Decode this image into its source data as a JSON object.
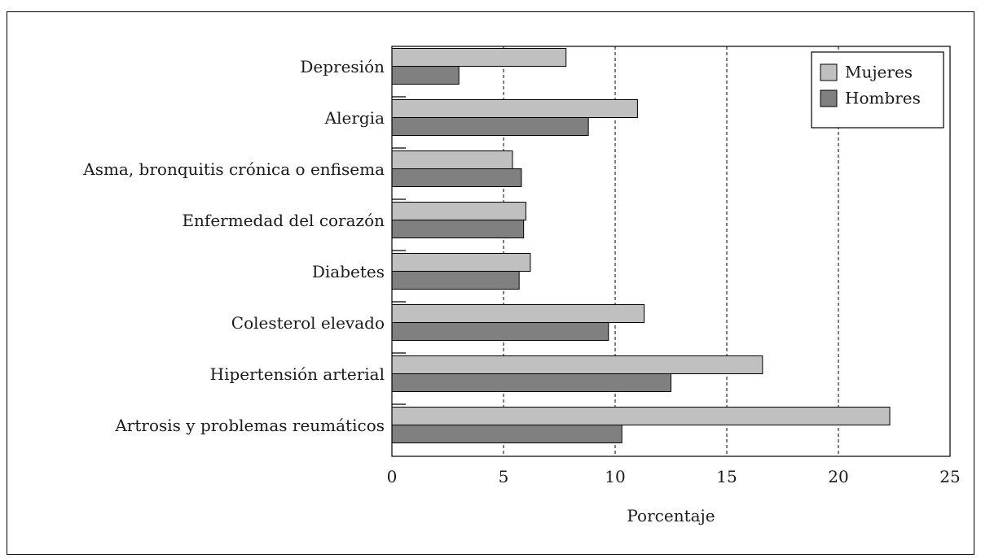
{
  "chart_data": {
    "type": "bar",
    "orientation": "horizontal",
    "categories": [
      "Depresión",
      "Alergia",
      "Asma, bronquitis crónica o enfisema",
      "Enfermedad del corazón",
      "Diabetes",
      "Colesterol elevado",
      "Hipertensión arterial",
      "Artrosis y problemas reumáticos"
    ],
    "series": [
      {
        "name": "Mujeres",
        "color": "#c0c0c0",
        "values": [
          7.8,
          11.0,
          5.4,
          6.0,
          6.2,
          11.3,
          16.6,
          22.3
        ]
      },
      {
        "name": "Hombres",
        "color": "#808080",
        "values": [
          3.0,
          8.8,
          5.8,
          5.9,
          5.7,
          9.7,
          12.5,
          10.3
        ]
      }
    ],
    "xlabel": "Porcentaje",
    "ylabel": "",
    "xlim": [
      0,
      25
    ],
    "xticks": [
      0,
      5,
      10,
      15,
      20,
      25
    ],
    "grid": "vertical-dashed",
    "legend_position": "top-right"
  }
}
